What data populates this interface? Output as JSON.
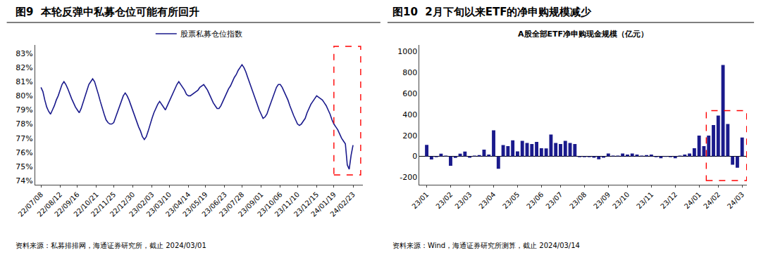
{
  "chart_data": [
    {
      "type": "line",
      "title": "图9  本轮反弹中私募仓位可能有所回升",
      "annotations": [
        "资料来源：私募排排网，海通证券研究所，截止 2024/03/01"
      ],
      "categories": [
        "22/07/08",
        null,
        null,
        null,
        null,
        null,
        null,
        null,
        null,
        null,
        "22/08/12",
        null,
        null,
        null,
        null,
        null,
        null,
        null,
        null,
        "22/09/16",
        null,
        null,
        null,
        null,
        null,
        null,
        null,
        null,
        null,
        "22/10/21",
        null,
        null,
        null,
        null,
        null,
        null,
        null,
        null,
        "22/11/25",
        null,
        null,
        null,
        null,
        null,
        null,
        null,
        null,
        null,
        "22/12/30",
        null,
        null,
        null,
        null,
        null,
        null,
        null,
        null,
        null,
        "23/02/03",
        null,
        null,
        null,
        null,
        null,
        null,
        null,
        null,
        "23/03/10",
        null,
        null,
        null,
        null,
        null,
        null,
        null,
        null,
        null,
        "23/04/14",
        null,
        null,
        null,
        null,
        null,
        null,
        null,
        null,
        "23/05/19",
        null,
        null,
        null,
        null,
        null,
        null,
        null,
        null,
        null,
        "23/06/23",
        null,
        null,
        null,
        null,
        null,
        null,
        null,
        null,
        "23/07/28",
        null,
        null,
        null,
        null,
        null,
        null,
        null,
        null,
        null,
        "23/09/01",
        null,
        null,
        null,
        null,
        null,
        null,
        null,
        null,
        null,
        "23/10/06",
        null,
        null,
        null,
        null,
        null,
        null,
        null,
        null,
        "23/11/10",
        null,
        null,
        null,
        null,
        null,
        null,
        null,
        null,
        null,
        "23/12/15",
        null,
        null,
        null,
        null,
        null,
        null,
        null,
        null,
        "24/01/19",
        null,
        null,
        null,
        null,
        null,
        null,
        null,
        null,
        null,
        "24/02/23"
      ],
      "series": [
        {
          "name": "股票私募仓位指数",
          "color": "#1a1a8c",
          "values": [
            0.806,
            0.803,
            0.797,
            0.792,
            0.789,
            0.787,
            0.79,
            0.793,
            0.797,
            0.8,
            0.804,
            0.808,
            0.81,
            0.808,
            0.805,
            0.801,
            0.798,
            0.795,
            0.792,
            0.79,
            0.788,
            0.791,
            0.795,
            0.8,
            0.804,
            0.808,
            0.81,
            0.812,
            0.81,
            0.806,
            0.801,
            0.796,
            0.791,
            0.787,
            0.783,
            0.781,
            0.78,
            0.78,
            0.781,
            0.785,
            0.789,
            0.793,
            0.797,
            0.8,
            0.802,
            0.8,
            0.797,
            0.793,
            0.789,
            0.785,
            0.781,
            0.778,
            0.775,
            0.771,
            0.769,
            0.771,
            0.775,
            0.78,
            0.784,
            0.788,
            0.791,
            0.794,
            0.796,
            0.794,
            0.792,
            0.79,
            0.793,
            0.796,
            0.799,
            0.802,
            0.805,
            0.808,
            0.81,
            0.808,
            0.806,
            0.804,
            0.801,
            0.8,
            0.8,
            0.801,
            0.802,
            0.803,
            0.804,
            0.806,
            0.807,
            0.808,
            0.806,
            0.804,
            0.801,
            0.798,
            0.795,
            0.793,
            0.791,
            0.791,
            0.793,
            0.796,
            0.799,
            0.802,
            0.805,
            0.807,
            0.81,
            0.813,
            0.815,
            0.818,
            0.82,
            0.822,
            0.82,
            0.817,
            0.813,
            0.809,
            0.805,
            0.801,
            0.797,
            0.793,
            0.79,
            0.787,
            0.784,
            0.785,
            0.787,
            0.791,
            0.795,
            0.799,
            0.803,
            0.806,
            0.808,
            0.808,
            0.806,
            0.803,
            0.8,
            0.797,
            0.793,
            0.789,
            0.786,
            0.783,
            0.78,
            0.779,
            0.78,
            0.782,
            0.784,
            0.788,
            0.791,
            0.794,
            0.796,
            0.798,
            0.8,
            0.799,
            0.798,
            0.797,
            0.795,
            0.793,
            0.79,
            0.787,
            0.783,
            0.78,
            0.778,
            0.776,
            0.773,
            0.77,
            0.768,
            0.766,
            0.751,
            0.748,
            0.758,
            0.765
          ]
        }
      ],
      "ylim": [
        0.737,
        0.836
      ],
      "yticks": [
        {
          "value": 0.74,
          "label": "74%"
        },
        {
          "value": 0.75,
          "label": "75%"
        },
        {
          "value": 0.76,
          "label": "76%"
        },
        {
          "value": 0.77,
          "label": "77%"
        },
        {
          "value": 0.78,
          "label": "78%"
        },
        {
          "value": 0.79,
          "label": "79%"
        },
        {
          "value": 0.8,
          "label": "80%"
        },
        {
          "value": 0.81,
          "label": "81%"
        },
        {
          "value": 0.82,
          "label": "82%"
        },
        {
          "value": 0.83,
          "label": "83%"
        }
      ],
      "grid": false,
      "legend": "top"
    },
    {
      "type": "bar",
      "title": "图10  2月下旬以来ETF的净申购规模减少",
      "subtitle": "A股全部ETF净申购现金规模（亿元）",
      "annotations": [
        "资料来源：Wind，海通证券研究所测算，截止 2024/03/14"
      ],
      "categories": [
        "23/01",
        null,
        null,
        null,
        null,
        "23/02",
        null,
        null,
        null,
        "23/03",
        null,
        null,
        null,
        null,
        "23/04",
        null,
        null,
        null,
        null,
        "23/05",
        null,
        null,
        null,
        null,
        "23/06",
        null,
        null,
        null,
        "23/07",
        null,
        null,
        null,
        null,
        "23/08",
        null,
        null,
        null,
        null,
        "23/09",
        null,
        null,
        null,
        "23/10",
        null,
        null,
        null,
        null,
        "23/11",
        null,
        null,
        null,
        null,
        "23/12",
        null,
        null,
        null,
        null,
        "24/01",
        null,
        null,
        null,
        "24/02",
        null,
        null,
        null,
        null,
        "24/03"
      ],
      "values": [
        110,
        -30,
        -8,
        25,
        8,
        -90,
        -15,
        25,
        45,
        -12,
        8,
        12,
        65,
        18,
        248,
        -118,
        108,
        98,
        152,
        48,
        148,
        128,
        118,
        138,
        78,
        76,
        208,
        128,
        118,
        148,
        128,
        118,
        -8,
        -8,
        -8,
        -12,
        -28,
        -12,
        28,
        8,
        8,
        28,
        18,
        28,
        18,
        8,
        12,
        18,
        -8,
        -18,
        -5,
        -8,
        -18,
        8,
        18,
        28,
        78,
        198,
        98,
        198,
        298,
        388,
        870,
        308,
        -80,
        -108,
        180
      ],
      "color": "#1a1a8c",
      "ylim": [
        -270,
        1060
      ],
      "yticks": [
        -200,
        0,
        200,
        400,
        600,
        800,
        1000
      ],
      "grid": false
    }
  ]
}
